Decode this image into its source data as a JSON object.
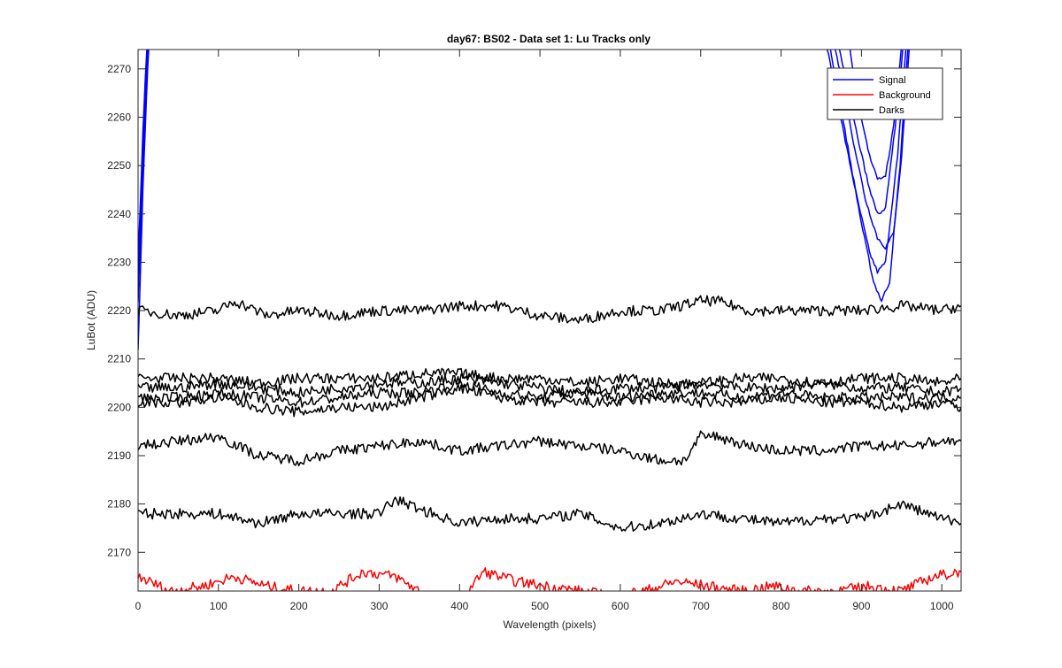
{
  "chart_data": {
    "type": "line",
    "title": "day67: BS02 - Data set 1: Lu Tracks only",
    "xlabel": "Wavelength (pixels)",
    "ylabel": "LuBot (ADU)",
    "xlim": [
      0,
      1024
    ],
    "ylim": [
      2162,
      2274
    ],
    "xticks": [
      0,
      100,
      200,
      300,
      400,
      500,
      600,
      700,
      800,
      900,
      1000
    ],
    "yticks": [
      2170,
      2180,
      2190,
      2200,
      2210,
      2220,
      2230,
      2240,
      2250,
      2260,
      2270
    ],
    "grid": false,
    "legend": {
      "location": "top-right",
      "entries": [
        "Signal",
        "Background",
        "Darks"
      ]
    },
    "colors": {
      "Signal": "#0000ff",
      "Background": "#ff0000",
      "Darks": "#000000"
    },
    "series": [
      {
        "name": "Signal",
        "group": "Signal",
        "x": [
          0,
          3,
          6,
          9,
          12,
          15,
          850,
          865,
          880,
          895,
          910,
          920,
          930,
          945,
          958
        ],
        "y": [
          2222,
          2235,
          2250,
          2262,
          2272,
          2280,
          2280,
          2268,
          2255,
          2243,
          2232,
          2228,
          2230,
          2252,
          2280
        ]
      },
      {
        "group": "Signal",
        "x": [
          0,
          3,
          6,
          9,
          12,
          15,
          855,
          870,
          885,
          900,
          915,
          925,
          935,
          948,
          960
        ],
        "y": [
          2212,
          2228,
          2245,
          2258,
          2270,
          2280,
          2280,
          2266,
          2252,
          2238,
          2226,
          2222,
          2226,
          2250,
          2280
        ]
      },
      {
        "group": "Signal",
        "x": [
          0,
          3,
          6,
          9,
          12,
          15,
          860,
          875,
          890,
          905,
          920,
          930,
          940,
          950,
          962
        ],
        "y": [
          2226,
          2240,
          2254,
          2266,
          2276,
          2280,
          2280,
          2268,
          2255,
          2243,
          2235,
          2233,
          2236,
          2252,
          2280
        ]
      },
      {
        "group": "Signal",
        "x": [
          0,
          3,
          6,
          9,
          12,
          15,
          880,
          895,
          910,
          920,
          930,
          940,
          950,
          960
        ],
        "y": [
          2230,
          2243,
          2257,
          2268,
          2277,
          2280,
          2280,
          2264,
          2252,
          2247,
          2248,
          2258,
          2275,
          2280
        ]
      },
      {
        "group": "Signal",
        "x": [
          0,
          3,
          6,
          9,
          12,
          15,
          865,
          880,
          895,
          910,
          920,
          930,
          942,
          955
        ],
        "y": [
          2228,
          2241,
          2255,
          2267,
          2276,
          2280,
          2280,
          2268,
          2256,
          2245,
          2240,
          2241,
          2258,
          2280
        ]
      },
      {
        "name": "Background",
        "group": "Background",
        "x": [
          0,
          40,
          80,
          120,
          160,
          200,
          240,
          280,
          320,
          360,
          400,
          430,
          470,
          510,
          550,
          590,
          630,
          670,
          710,
          750,
          790,
          830,
          870,
          910,
          950,
          990,
          1024
        ],
        "y": [
          2165,
          2162,
          2163,
          2165,
          2163,
          2162,
          2162,
          2166,
          2165,
          2161,
          2160,
          2166,
          2164,
          2163,
          2162,
          2161,
          2162,
          2164,
          2163,
          2162,
          2163,
          2162,
          2162,
          2163,
          2162,
          2165,
          2166
        ]
      },
      {
        "name": "Darks",
        "group": "Darks",
        "x": [
          0,
          50,
          100,
          120,
          160,
          200,
          250,
          300,
          350,
          400,
          450,
          500,
          550,
          600,
          650,
          700,
          720,
          760,
          800,
          850,
          900,
          950,
          1000,
          1024
        ],
        "y": [
          2220,
          2219,
          2220,
          2222,
          2219,
          2220,
          2219,
          2220,
          2220,
          2221,
          2221,
          2219,
          2218,
          2220,
          2220,
          2222,
          2222,
          2220,
          2220,
          2220,
          2220,
          2221,
          2220,
          2221
        ]
      },
      {
        "group": "Darks",
        "x": [
          0,
          50,
          100,
          150,
          200,
          250,
          300,
          350,
          400,
          450,
          500,
          550,
          600,
          650,
          700,
          750,
          800,
          850,
          900,
          950,
          1000,
          1024
        ],
        "y": [
          2206,
          2206,
          2206,
          2205,
          2206,
          2206,
          2206,
          2207,
          2207,
          2206,
          2206,
          2205,
          2206,
          2205,
          2205,
          2206,
          2206,
          2205,
          2206,
          2206,
          2205,
          2206
        ]
      },
      {
        "group": "Darks",
        "x": [
          0,
          50,
          100,
          150,
          200,
          250,
          300,
          350,
          400,
          450,
          500,
          550,
          600,
          650,
          700,
          750,
          800,
          850,
          900,
          950,
          1000,
          1024
        ],
        "y": [
          2204,
          2204,
          2205,
          2204,
          2203,
          2204,
          2205,
          2205,
          2206,
          2205,
          2204,
          2203,
          2204,
          2204,
          2205,
          2204,
          2204,
          2205,
          2204,
          2204,
          2203,
          2204
        ]
      },
      {
        "group": "Darks",
        "x": [
          0,
          50,
          100,
          150,
          200,
          250,
          300,
          350,
          400,
          450,
          500,
          550,
          600,
          650,
          700,
          750,
          800,
          850,
          900,
          950,
          1000,
          1024
        ],
        "y": [
          2202,
          2202,
          2203,
          2202,
          2201,
          2202,
          2203,
          2203,
          2205,
          2203,
          2202,
          2203,
          2202,
          2203,
          2203,
          2202,
          2203,
          2202,
          2202,
          2202,
          2202,
          2202
        ]
      },
      {
        "group": "Darks",
        "x": [
          0,
          50,
          100,
          150,
          200,
          250,
          300,
          350,
          400,
          450,
          500,
          550,
          600,
          650,
          700,
          750,
          800,
          850,
          900,
          950,
          1000,
          1024
        ],
        "y": [
          2201,
          2201,
          2202,
          2200,
          2199,
          2200,
          2200,
          2202,
          2204,
          2202,
          2201,
          2201,
          2201,
          2202,
          2201,
          2201,
          2202,
          2201,
          2201,
          2200,
          2201,
          2200
        ]
      },
      {
        "group": "Darks",
        "x": [
          0,
          50,
          100,
          150,
          200,
          250,
          300,
          350,
          400,
          450,
          500,
          550,
          600,
          650,
          680,
          700,
          720,
          760,
          800,
          850,
          900,
          950,
          1000,
          1024
        ],
        "y": [
          2192,
          2193,
          2194,
          2190,
          2189,
          2191,
          2192,
          2193,
          2191,
          2192,
          2193,
          2192,
          2191,
          2189,
          2189,
          2194,
          2194,
          2192,
          2191,
          2191,
          2192,
          2192,
          2193,
          2193
        ]
      },
      {
        "group": "Darks",
        "x": [
          0,
          50,
          100,
          150,
          200,
          250,
          300,
          320,
          350,
          400,
          450,
          500,
          550,
          600,
          650,
          700,
          750,
          800,
          850,
          900,
          950,
          1000,
          1024
        ],
        "y": [
          2178,
          2178,
          2178,
          2176,
          2178,
          2178,
          2178,
          2181,
          2179,
          2176,
          2177,
          2177,
          2178,
          2175,
          2176,
          2178,
          2177,
          2176,
          2177,
          2177,
          2180,
          2177,
          2176
        ]
      }
    ]
  }
}
